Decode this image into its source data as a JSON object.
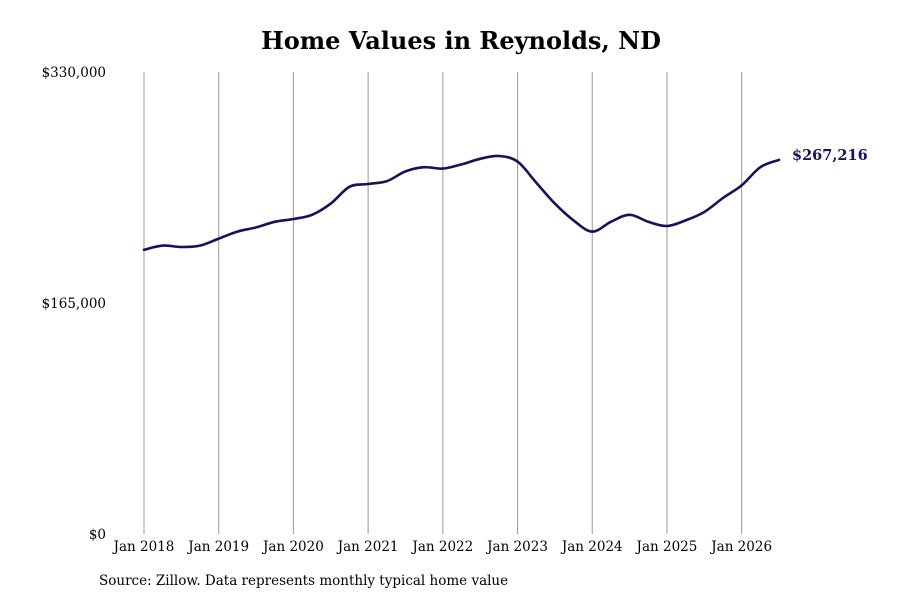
{
  "chart_data": {
    "type": "line",
    "title": "Home Values in Reynolds, ND",
    "xlabel": "",
    "ylabel": "",
    "ylim": [
      0,
      330000
    ],
    "y_ticks": [
      0,
      165000,
      330000
    ],
    "y_tick_labels": [
      "$0",
      "$165,000",
      "$330,000"
    ],
    "x_ticks": [
      "2018-01",
      "2019-01",
      "2020-01",
      "2021-01",
      "2022-01",
      "2023-01",
      "2024-01",
      "2025-01",
      "2026-01"
    ],
    "x_tick_labels": [
      "Jan 2018",
      "Jan 2019",
      "Jan 2020",
      "Jan 2021",
      "Jan 2022",
      "Jan 2023",
      "Jan 2024",
      "Jan 2025",
      "Jan 2026"
    ],
    "xlim": [
      "2018-01",
      "2026-07"
    ],
    "grid": "vertical lines at x ticks",
    "line_color": "#14145c",
    "grid_color": "#999999",
    "end_label": "$267,216",
    "series": [
      {
        "x": [
          "2018-01",
          "2018-04",
          "2018-07",
          "2018-10",
          "2019-01",
          "2019-04",
          "2019-07",
          "2019-10",
          "2020-01",
          "2020-04",
          "2020-07",
          "2020-10",
          "2021-01",
          "2021-04",
          "2021-07",
          "2021-10",
          "2022-01",
          "2022-04",
          "2022-07",
          "2022-10",
          "2023-01",
          "2023-04",
          "2023-07",
          "2023-10",
          "2024-01",
          "2024-04",
          "2024-07",
          "2024-10",
          "2025-01",
          "2025-04",
          "2025-07",
          "2025-10",
          "2026-01",
          "2026-04",
          "2026-07"
        ],
        "y": [
          203000,
          206000,
          205000,
          206000,
          211000,
          216000,
          219000,
          223000,
          225000,
          228000,
          236000,
          248000,
          250000,
          252000,
          259000,
          262000,
          261000,
          264000,
          268000,
          270000,
          266000,
          251000,
          236000,
          224000,
          216000,
          223000,
          228000,
          223000,
          220000,
          224000,
          230000,
          240000,
          249000,
          262000,
          267216
        ]
      }
    ]
  },
  "source": "Source: Zillow. Data represents monthly typical home value"
}
